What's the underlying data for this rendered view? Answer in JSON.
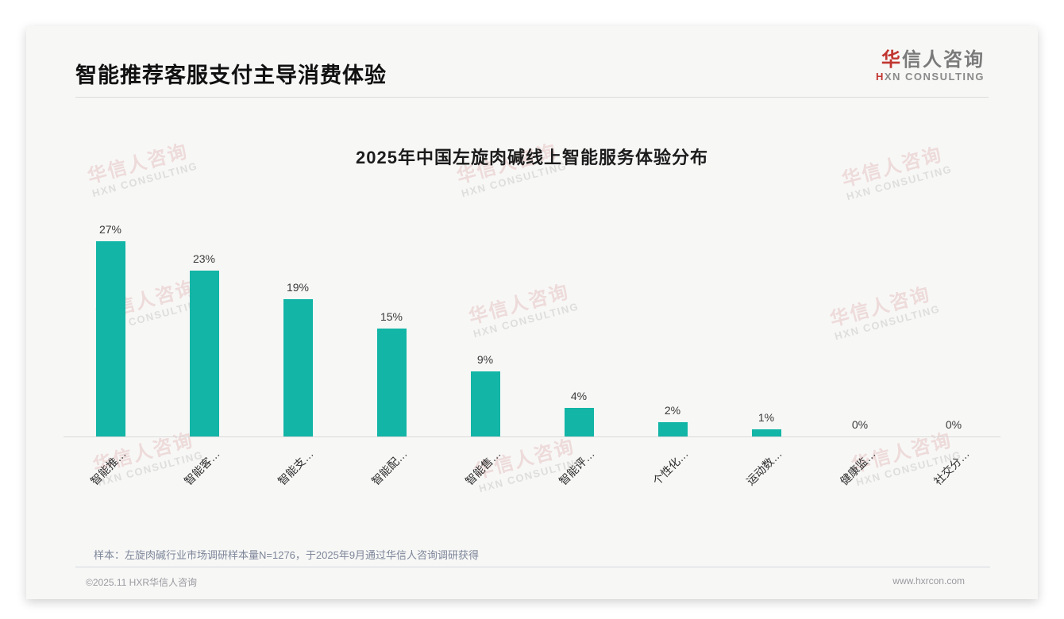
{
  "page": {
    "title": "智能推荐客服支付主导消费体验",
    "logo": {
      "zh_first": "华",
      "zh_rest": "信人咨询",
      "en_first": "H",
      "en_rest": "XN CONSULTING"
    },
    "note": "样本：左旋肉碱行业市场调研样本量N=1276，于2025年9月通过华信人咨询调研获得",
    "footer": {
      "copyright": "©2025.11 HXR华信人咨询",
      "website": "www.hxrcon.com"
    },
    "watermark": {
      "line1": "华信人咨询",
      "line2": "HXN CONSULTING"
    }
  },
  "chart_data": {
    "type": "bar",
    "title": "2025年中国左旋肉碱线上智能服务体验分布",
    "categories": [
      "智能推…",
      "智能客…",
      "智能支…",
      "智能配…",
      "智能售…",
      "智能评…",
      "个性化…",
      "运动数…",
      "健康监…",
      "社交分…"
    ],
    "values": [
      27,
      23,
      19,
      15,
      9,
      4,
      2,
      1,
      0,
      0
    ],
    "value_labels": [
      "27%",
      "23%",
      "19%",
      "15%",
      "9%",
      "4%",
      "2%",
      "1%",
      "0%",
      "0%"
    ],
    "bar_color": "#12b5a6",
    "axis_line_color": "#d9d9d9",
    "ylim": [
      0,
      30
    ],
    "grid": false,
    "legend_position": "none",
    "xlabel": "",
    "ylabel": ""
  }
}
